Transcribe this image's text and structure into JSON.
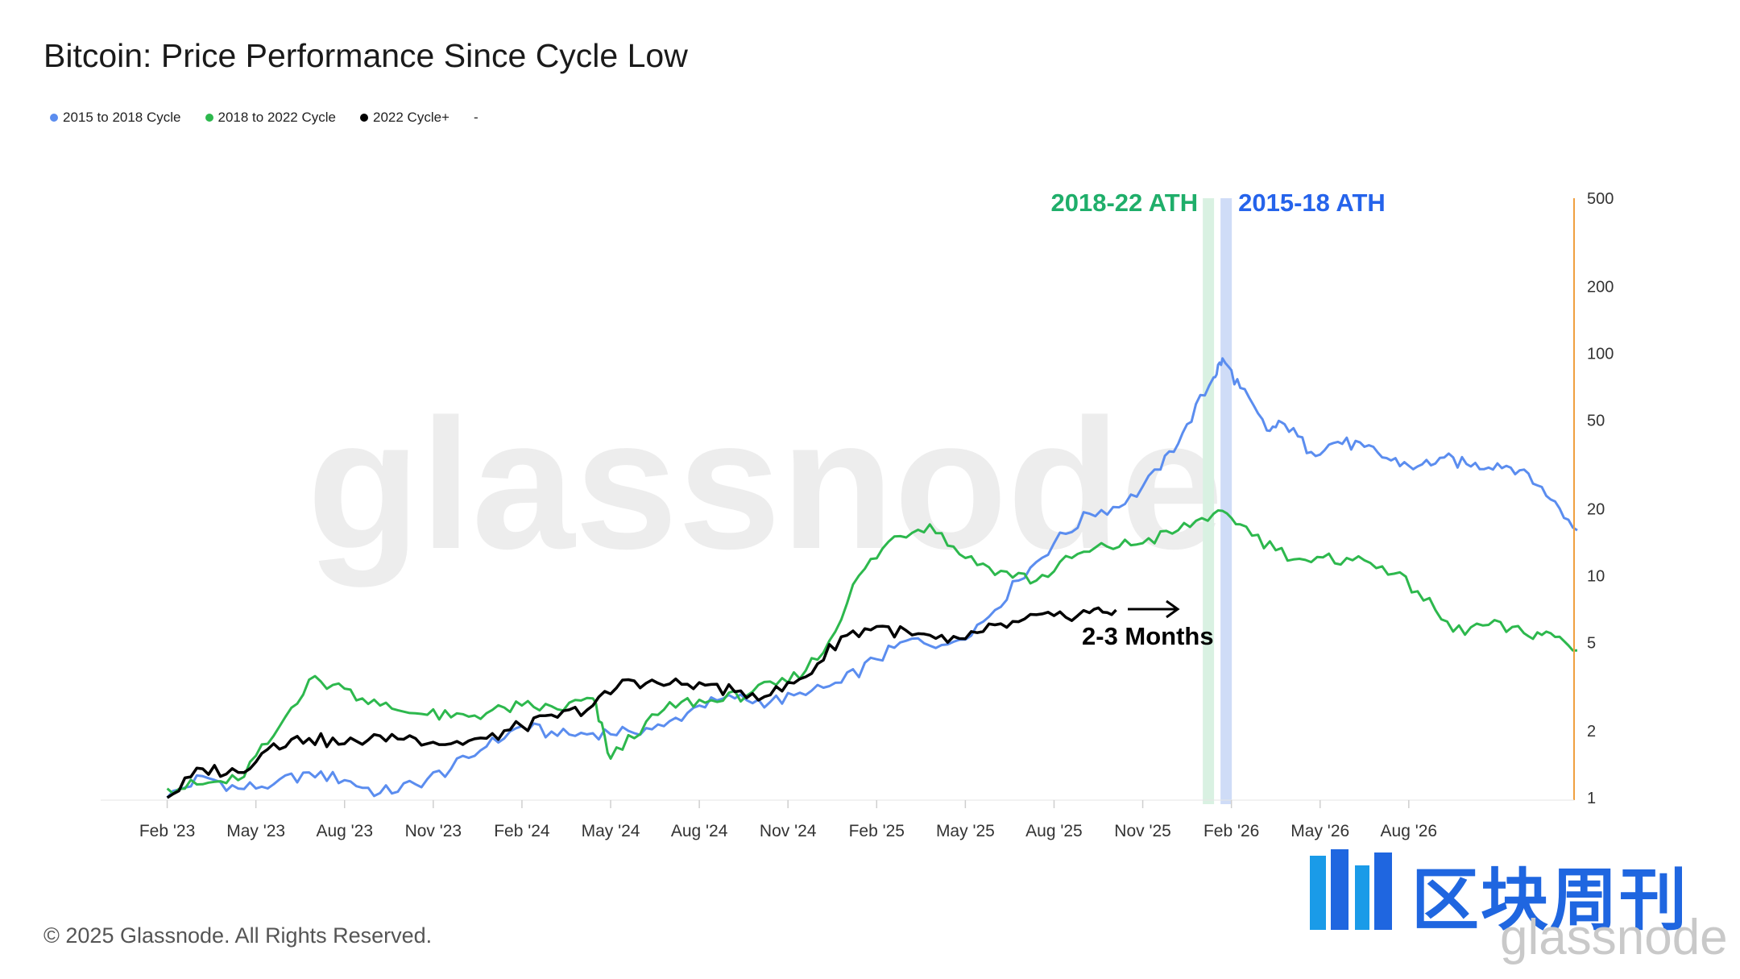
{
  "title": "Bitcoin: Price Performance Since Cycle Low",
  "footer": "© 2025 Glassnode. All Rights Reserved.",
  "watermark": "glassnode",
  "brand": {
    "cn": "区块周刊",
    "en": "glassnode"
  },
  "legend": [
    {
      "label": "2015 to 2018 Cycle",
      "color": "#5b8def"
    },
    {
      "label": "2018 to 2022 Cycle",
      "color": "#2db84d"
    },
    {
      "label": "2022 Cycle+",
      "color": "#000000"
    }
  ],
  "legend_extra": "-",
  "colors": {
    "blue": "#5b8def",
    "green": "#2db84d",
    "black": "#000000",
    "axis": "#f0a040",
    "ath_green_band": "#d9f1e2",
    "ath_blue_band": "#cfdcf7",
    "ath_green_text": "#1fae6a",
    "ath_blue_text": "#2563eb"
  },
  "chart_data": {
    "type": "line",
    "y_scale": "log",
    "ylim": [
      1,
      500
    ],
    "y_ticks": [
      "500",
      "200",
      "100",
      "50",
      "20",
      "10",
      "5",
      "2",
      "1"
    ],
    "x_ticks": [
      "Feb '23",
      "May '23",
      "Aug '23",
      "Nov '23",
      "Feb '24",
      "May '24",
      "Aug '24",
      "Nov '24",
      "Feb '25",
      "May '25",
      "Aug '25",
      "Nov '25",
      "Feb '26",
      "May '26",
      "Aug '26"
    ],
    "annotations": [
      {
        "text": "2018-22 ATH",
        "x": 11.75
      },
      {
        "text": "2015-18 ATH",
        "x": 11.95
      },
      {
        "text": "2-3 Months",
        "x": 11.0,
        "y": 4.3
      }
    ],
    "series": [
      {
        "name": "2015 to 2018 Cycle",
        "x": [
          0,
          0.4,
          0.8,
          1.2,
          1.6,
          2.0,
          2.4,
          2.8,
          3.2,
          3.6,
          4.0,
          4.4,
          4.8,
          5.2,
          5.6,
          6.0,
          6.4,
          6.8,
          7.2,
          7.6,
          8.0,
          8.4,
          8.8,
          9.2,
          9.6,
          10.0,
          10.4,
          10.8,
          11.2,
          11.5,
          11.8,
          11.9,
          12.1,
          12.4,
          12.6,
          12.9,
          13.2,
          13.5,
          13.8,
          14.1,
          14.4,
          14.7,
          15.0,
          15.3,
          15.6,
          15.9
        ],
        "values": [
          1.0,
          1.25,
          1.1,
          1.15,
          1.3,
          1.2,
          1.05,
          1.15,
          1.35,
          1.7,
          2.1,
          1.9,
          1.95,
          2.0,
          2.1,
          2.6,
          2.8,
          2.7,
          2.9,
          3.3,
          4.2,
          5.2,
          4.9,
          6.2,
          9.5,
          14.0,
          19.0,
          21.0,
          30.0,
          48.0,
          78.0,
          95.0,
          70.0,
          45.0,
          48.0,
          36.0,
          40.0,
          38.0,
          33.0,
          31.0,
          34.0,
          31.0,
          32.0,
          30.0,
          22.0,
          16.0
        ]
      },
      {
        "name": "2018 to 2022 Cycle",
        "x": [
          0,
          0.4,
          0.8,
          1.2,
          1.6,
          2.0,
          2.4,
          2.8,
          3.2,
          3.6,
          4.0,
          4.4,
          4.8,
          5.0,
          5.4,
          5.8,
          6.2,
          6.6,
          7.0,
          7.4,
          7.8,
          8.2,
          8.6,
          9.0,
          9.4,
          9.8,
          10.2,
          10.6,
          11.0,
          11.4,
          11.8,
          12.1,
          12.5,
          12.9,
          13.3,
          13.7,
          14.1,
          14.5,
          14.9,
          15.3,
          15.6,
          15.9
        ],
        "values": [
          1.1,
          1.15,
          1.2,
          1.9,
          3.4,
          3.1,
          2.6,
          2.4,
          2.3,
          2.4,
          2.6,
          2.5,
          2.8,
          1.5,
          2.2,
          2.7,
          2.7,
          3.0,
          3.3,
          4.5,
          10.0,
          15.0,
          17.0,
          12.0,
          10.5,
          9.5,
          12.0,
          13.5,
          14.0,
          16.0,
          19.0,
          17.0,
          13.0,
          11.5,
          12.0,
          11.0,
          8.5,
          5.6,
          6.0,
          5.5,
          5.5,
          4.6
        ]
      },
      {
        "name": "2022 Cycle+",
        "x": [
          0,
          0.4,
          0.8,
          1.2,
          1.6,
          2.0,
          2.4,
          2.8,
          3.2,
          3.6,
          4.0,
          4.4,
          4.8,
          5.2,
          5.6,
          6.0,
          6.4,
          6.8,
          7.2,
          7.6,
          8.0,
          8.4,
          8.8,
          9.2,
          9.6,
          10.0,
          10.4,
          10.7
        ],
        "values": [
          1.0,
          1.35,
          1.3,
          1.75,
          1.85,
          1.75,
          1.9,
          1.85,
          1.75,
          1.85,
          2.1,
          2.3,
          2.6,
          3.4,
          3.2,
          3.3,
          3.0,
          2.9,
          3.5,
          5.3,
          5.9,
          5.4,
          5.0,
          5.6,
          6.2,
          6.6,
          6.8,
          7.0
        ]
      }
    ]
  }
}
